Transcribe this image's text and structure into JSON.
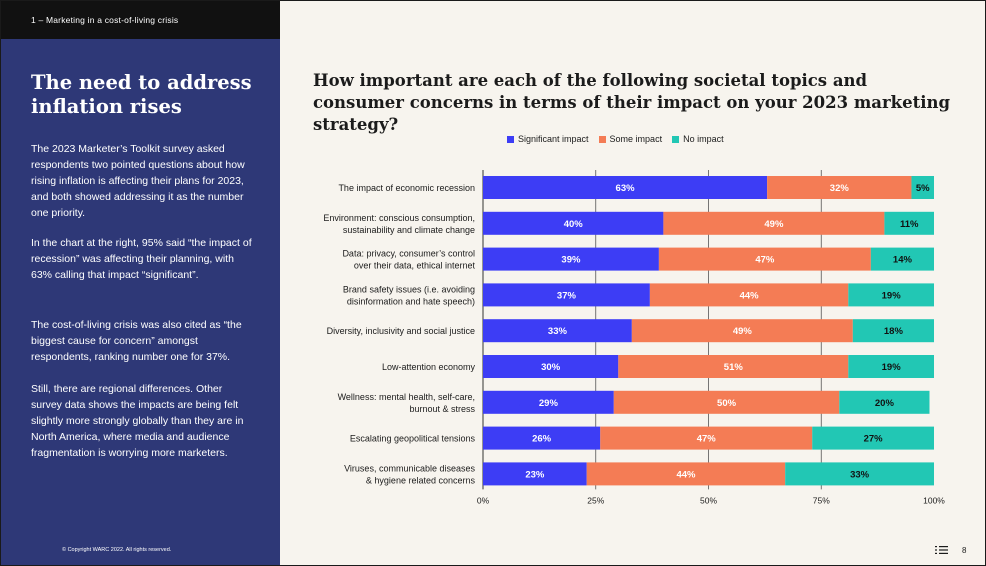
{
  "section_label": "1 – Marketing in a cost-of-living crisis",
  "sidebar": {
    "title": "The need to address inflation rises",
    "paragraphs": [
      "The 2023 Marketer’s Toolkit survey asked respondents two pointed questions about how rising inflation is affecting their plans for 2023, and both showed addressing it as the number one priority.",
      "In the chart at the right, 95% said “the impact of recession” was affecting their planning, with 63% calling that impact “significant”.",
      "The cost-of-living crisis was also cited as “the biggest cause for concern” amongst respondents, ranking number one for 37%.",
      "Still, there are regional differences. Other survey data shows the impacts are being felt slightly more strongly globally than they are in North America, where media and audience fragmentation is worrying more marketers."
    ],
    "copyright": "© Copyright WARC 2022. All rights reserved."
  },
  "page_number": "8",
  "chart_data": {
    "type": "bar",
    "orientation": "horizontal",
    "stacked": true,
    "title": "How important are each of the following societal topics and consumer concerns in terms of their impact on your 2023 marketing strategy?",
    "categories": [
      "The impact of economic recession",
      "Environment: conscious consumption, sustainability and climate change",
      "Data: privacy, consumer’s control over their data, ethical internet",
      "Brand safety issues (i.e. avoiding disinformation and hate speech)",
      "Diversity, inclusivity and social justice",
      "Low-attention economy",
      "Wellness: mental health, self-care, burnout & stress",
      "Escalating geopolitical tensions",
      "Viruses, communicable diseases & hygiene related concerns"
    ],
    "category_lines": [
      [
        "The impact of economic recession"
      ],
      [
        "Environment: conscious consumption,",
        "sustainability and climate change"
      ],
      [
        "Data: privacy, consumer’s control",
        "over their data, ethical internet"
      ],
      [
        "Brand safety issues (i.e. avoiding",
        "disinformation and hate speech)"
      ],
      [
        "Diversity, inclusivity and social justice"
      ],
      [
        "Low-attention economy"
      ],
      [
        "Wellness: mental health, self-care,",
        "burnout & stress"
      ],
      [
        "Escalating geopolitical tensions"
      ],
      [
        "Viruses, communicable diseases",
        "& hygiene related concerns"
      ]
    ],
    "series": [
      {
        "name": "Significant impact",
        "color": "#3d3df5",
        "values": [
          63,
          40,
          39,
          37,
          33,
          30,
          29,
          26,
          23
        ]
      },
      {
        "name": "Some impact",
        "color": "#f47c55",
        "values": [
          32,
          49,
          47,
          44,
          49,
          51,
          50,
          47,
          44
        ]
      },
      {
        "name": "No impact",
        "color": "#22c7b4",
        "values": [
          5,
          11,
          14,
          19,
          18,
          19,
          20,
          27,
          33
        ]
      }
    ],
    "xlim": [
      0,
      100
    ],
    "xticks": [
      "0%",
      "25%",
      "50%",
      "75%",
      "100%"
    ],
    "tick_values": [
      0,
      25,
      50,
      75,
      100
    ],
    "legend": "top-center",
    "grid": true
  }
}
